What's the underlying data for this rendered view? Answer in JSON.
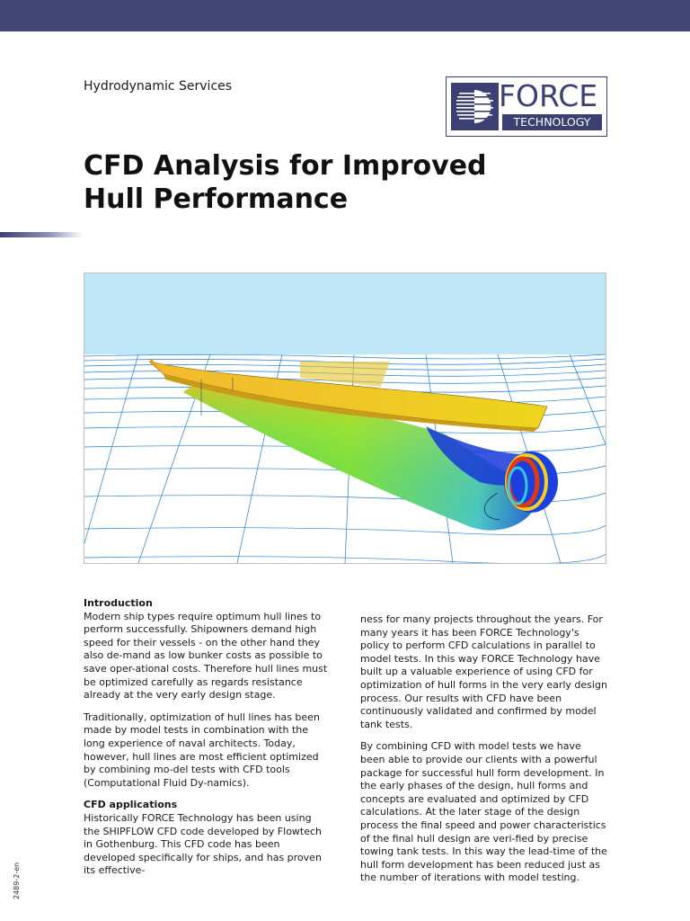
{
  "header": {
    "kicker": "Hydrodynamic Services",
    "logo": {
      "word": "FORCE",
      "sub": "TECHNOLOGY"
    },
    "title_line1": "CFD Analysis for Improved",
    "title_line2": "Hull Performance"
  },
  "colors": {
    "brand": "#3c3f72",
    "topbar": "#434675",
    "water_lines": "#1e7fd6",
    "sky": "#bfe6f7"
  },
  "figure": {
    "subject": "ship hull CFD pressure distribution render"
  },
  "sections": [
    {
      "heading": "Introduction",
      "paragraphs": [
        "Modern ship types require optimum hull lines to perform successfully. Shipowners demand high speed for their vessels - on the other hand they also de-mand as low bunker costs as possible to save oper-ational costs. Therefore hull lines must be optimized carefully as regards resistance already at the very early design stage.",
        "Traditionally, optimization of hull lines has been made by model tests in combination with the long experience of naval architects. Today, however, hull lines are most efficient optimized by combining mo-del tests with CFD tools (Computational Fluid Dy-namics)."
      ]
    },
    {
      "heading": "CFD applications",
      "paragraphs": [
        "Historically FORCE Technology has been using the SHIPFLOW CFD code developed by Flowtech in Gothenburg. This CFD code has been developed specifically for ships, and has proven its effective-"
      ]
    }
  ],
  "right_column": {
    "paragraphs": [
      "ness for many projects throughout the years. For many years it has been FORCE Technology's policy to perform CFD calculations in parallel to model tests. In this way FORCE Technology have built up a valuable experience of using CFD for optimization of hull forms in the very early design process. Our results with CFD have been continuously validated and confirmed by model tank tests.",
      "By combining CFD with model tests we have been able to provide our clients with a powerful package for successful hull form development. In the early phases of the design, hull forms and concepts are evaluated and optimized by CFD calculations. At the later stage of the design process the final speed and power characteristics of the final hull design are veri-fied by precise towing tank tests. In this way the lead-time of the hull form development has been reduced just as the number of iterations with model testing."
    ]
  },
  "footer": {
    "doc_id": "2489-2-en"
  }
}
